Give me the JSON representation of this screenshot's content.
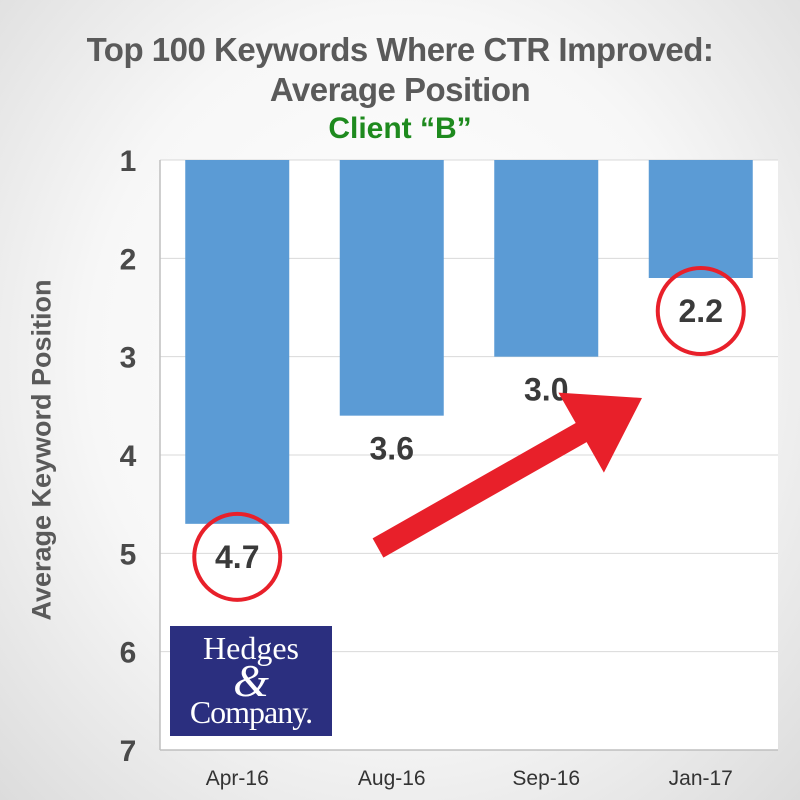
{
  "chart_data": {
    "type": "bar",
    "title_line1": "Top 100 Keywords Where CTR Improved:",
    "title_line2": "Average Position",
    "subtitle": "Client “B”",
    "ylabel": "Average Keyword Position",
    "xlabel": "",
    "categories": [
      "Apr-16",
      "Aug-16",
      "Sep-16",
      "Jan-17"
    ],
    "values": [
      4.7,
      3.6,
      3.0,
      2.2
    ],
    "data_labels": [
      "4.7",
      "3.6",
      "3.0",
      "2.2"
    ],
    "circled_labels": [
      true,
      false,
      false,
      true
    ],
    "ylim": [
      1,
      7
    ],
    "y_axis_inverted": true,
    "yticks": [
      "1",
      "2",
      "3",
      "4",
      "5",
      "6",
      "7"
    ],
    "grid": true,
    "bar_color": "#5b9bd5",
    "annotation": "red-arrow-up-right"
  },
  "logo": {
    "line1": "Hedges",
    "amp": "&",
    "line3": "Company."
  },
  "colors": {
    "title": "#5a5a5a",
    "subtitle": "#1e8a1e",
    "circle": "#e8202a",
    "arrow": "#e8202a"
  }
}
